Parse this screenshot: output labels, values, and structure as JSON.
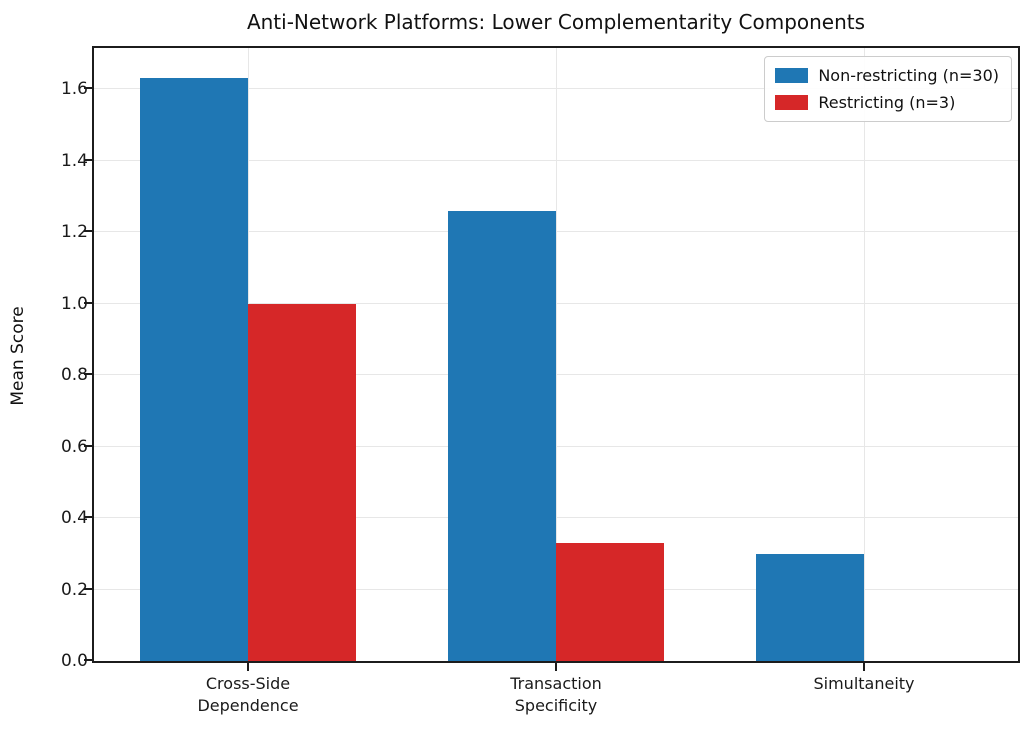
{
  "chart_data": {
    "type": "bar",
    "title": "Anti-Network Platforms: Lower Complementarity Components",
    "xlabel": "",
    "ylabel": "Mean Score",
    "categories": [
      "Cross-Side\nDependence",
      "Transaction\nSpecificity",
      "Simultaneity"
    ],
    "series": [
      {
        "name": "Non-restricting (n=30)",
        "color": "#1f77b4",
        "values": [
          1.63,
          1.26,
          0.3
        ]
      },
      {
        "name": "Restricting (n=3)",
        "color": "#d62728",
        "values": [
          1.0,
          0.33,
          0.0
        ]
      }
    ],
    "ylim": [
      0,
      1.715
    ],
    "yticks": [
      0.0,
      0.2,
      0.4,
      0.6,
      0.8,
      1.0,
      1.2,
      1.4,
      1.6
    ],
    "ytick_format_decimals": 1,
    "bar_width_fraction": 0.1167,
    "grid": true,
    "legend_position": "upper right"
  }
}
